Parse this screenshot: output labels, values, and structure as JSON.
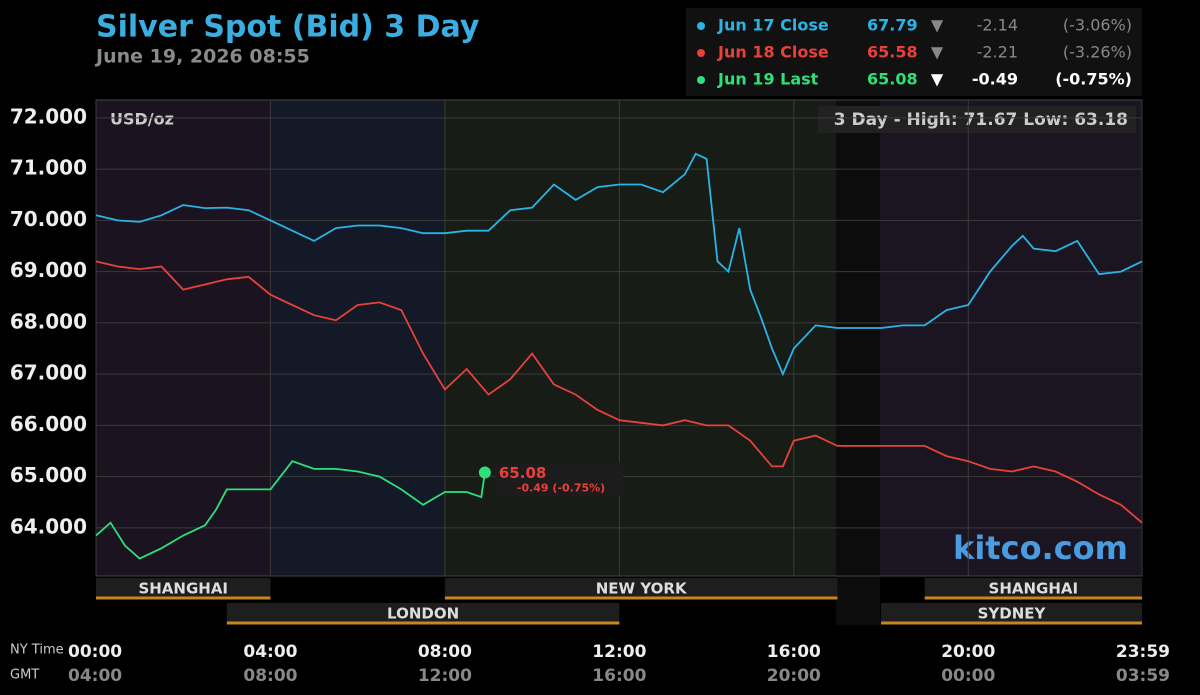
{
  "chart_data": {
    "type": "line",
    "title": "Silver Spot (Bid) 3 Day",
    "subtitle": "June 19, 2026 08:55",
    "y_label": "USD/oz",
    "range_note": "3 Day - High: 71.67  Low: 63.18",
    "watermark": "kitco.com",
    "x_label": "NY Time",
    "x2_label": "GMT",
    "xlim": [
      "00:00",
      "23:59"
    ],
    "xticks": [
      "00:00",
      "04:00",
      "08:00",
      "12:00",
      "16:00",
      "20:00",
      "23:59"
    ],
    "x2ticks": [
      "04:00",
      "08:00",
      "12:00",
      "16:00",
      "20:00",
      "00:00",
      "03:59"
    ],
    "ylim": [
      63.06,
      72.35
    ],
    "yticks": [
      {
        "value": 64,
        "label": "64.000"
      },
      {
        "value": 65,
        "label": "65.000"
      },
      {
        "value": 66,
        "label": "66.000"
      },
      {
        "value": 67,
        "label": "67.000"
      },
      {
        "value": 68,
        "label": "68.000"
      },
      {
        "value": 69,
        "label": "69.000"
      },
      {
        "value": 70,
        "label": "70.000"
      },
      {
        "value": 71,
        "label": "71.000"
      },
      {
        "value": 72,
        "label": "72.000"
      }
    ],
    "grid": true,
    "series": [
      {
        "name": "Jun 17 Close",
        "color": "#2ab4e6",
        "last": 67.79,
        "arrow": "▼",
        "change": -2.14,
        "change_label": "(-3.06%)",
        "x": [
          "00:00",
          "00:30",
          "01:00",
          "01:30",
          "02:00",
          "02:30",
          "03:00",
          "03:30",
          "04:00",
          "04:30",
          "05:00",
          "05:30",
          "06:00",
          "06:30",
          "07:00",
          "07:30",
          "08:00",
          "08:30",
          "09:00",
          "09:30",
          "10:00",
          "10:30",
          "11:00",
          "11:30",
          "12:00",
          "12:30",
          "13:00",
          "13:30",
          "13:45",
          "14:00",
          "14:15",
          "14:30",
          "14:45",
          "15:00",
          "15:15",
          "15:30",
          "15:45",
          "16:00",
          "16:30",
          "17:00",
          "18:00",
          "18:30",
          "19:00",
          "19:30",
          "20:00",
          "20:30",
          "21:00",
          "21:15",
          "21:30",
          "22:00",
          "22:30",
          "23:00",
          "23:30",
          "23:59"
        ],
        "values": [
          70.1,
          70.0,
          69.97,
          70.1,
          70.3,
          70.24,
          70.25,
          70.2,
          70.0,
          69.8,
          69.6,
          69.85,
          69.9,
          69.9,
          69.85,
          69.75,
          69.75,
          69.8,
          69.8,
          70.2,
          70.25,
          70.7,
          70.4,
          70.65,
          70.7,
          70.7,
          70.55,
          70.9,
          71.3,
          71.2,
          69.2,
          69.0,
          69.85,
          68.65,
          68.1,
          67.5,
          67.0,
          67.5,
          67.95,
          67.9,
          67.9,
          67.95,
          67.95,
          68.25,
          68.35,
          69.0,
          69.5,
          69.7,
          69.45,
          69.4,
          69.6,
          68.95,
          69.0,
          69.2
        ]
      },
      {
        "name": "Jun 18 Close",
        "color": "#e8413a",
        "last": 65.58,
        "arrow": "▼",
        "change": -2.21,
        "change_label": "(-3.26%)",
        "x": [
          "00:00",
          "00:30",
          "01:00",
          "01:30",
          "02:00",
          "02:30",
          "03:00",
          "03:30",
          "04:00",
          "04:30",
          "05:00",
          "05:30",
          "06:00",
          "06:30",
          "07:00",
          "07:30",
          "08:00",
          "08:30",
          "09:00",
          "09:30",
          "10:00",
          "10:30",
          "11:00",
          "11:30",
          "12:00",
          "12:30",
          "13:00",
          "13:30",
          "14:00",
          "14:30",
          "15:00",
          "15:30",
          "15:45",
          "16:00",
          "16:30",
          "17:00",
          "18:00",
          "18:30",
          "19:00",
          "19:30",
          "20:00",
          "20:30",
          "21:00",
          "21:30",
          "22:00",
          "22:30",
          "23:00",
          "23:30",
          "23:59"
        ],
        "values": [
          69.2,
          69.1,
          69.05,
          69.1,
          68.65,
          68.75,
          68.85,
          68.9,
          68.55,
          68.35,
          68.15,
          68.05,
          68.35,
          68.4,
          68.25,
          67.4,
          66.7,
          67.1,
          66.6,
          66.9,
          67.4,
          66.8,
          66.6,
          66.3,
          66.1,
          66.05,
          66.0,
          66.1,
          66.0,
          66.0,
          65.7,
          65.2,
          65.2,
          65.7,
          65.8,
          65.6,
          65.6,
          65.6,
          65.6,
          65.4,
          65.3,
          65.15,
          65.1,
          65.2,
          65.1,
          64.9,
          64.65,
          64.45,
          64.1
        ]
      },
      {
        "name": "Jun 19 Last",
        "color": "#2fe07a",
        "last": 65.08,
        "arrow": "▼",
        "change": -0.49,
        "change_label": "(-0.75%)",
        "x": [
          "00:00",
          "00:20",
          "00:40",
          "01:00",
          "01:30",
          "02:00",
          "02:30",
          "02:45",
          "03:00",
          "03:30",
          "04:00",
          "04:30",
          "05:00",
          "05:30",
          "06:00",
          "06:30",
          "07:00",
          "07:30",
          "08:00",
          "08:30",
          "08:50",
          "08:55"
        ],
        "values": [
          63.85,
          64.1,
          63.65,
          63.4,
          63.6,
          63.85,
          64.05,
          64.35,
          64.75,
          64.75,
          64.75,
          65.3,
          65.15,
          65.15,
          65.1,
          65.0,
          64.75,
          64.45,
          64.7,
          64.7,
          64.6,
          65.08
        ]
      }
    ],
    "annotation": "-0.49 (-0.75%)",
    "sessions": [
      {
        "name": "SHANGHAI",
        "start": "00:00",
        "end": "04:00",
        "row": 1
      },
      {
        "name": "NEW YORK",
        "start": "08:00",
        "end": "17:00",
        "row": 1
      },
      {
        "name": "SHANGHAI",
        "start": "19:00",
        "end": "23:59",
        "row": 1
      },
      {
        "name": "LONDON",
        "start": "03:00",
        "end": "12:00",
        "row": 2
      },
      {
        "name": "SYDNEY",
        "start": "18:00",
        "end": "23:59",
        "row": 2
      }
    ]
  }
}
